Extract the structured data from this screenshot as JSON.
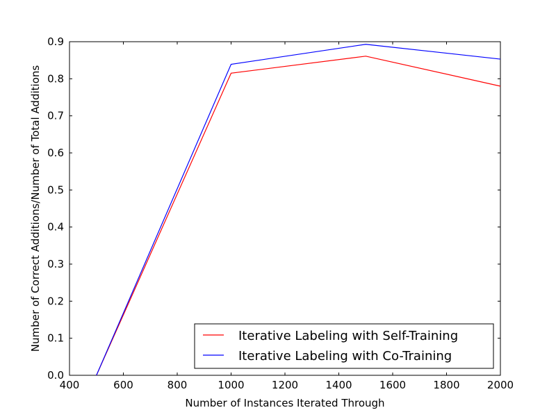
{
  "chart_data": {
    "type": "line",
    "title": "",
    "xlabel": "Number of Instances Iterated Through",
    "ylabel": "Number of Correct Additions/Number of Total Additions",
    "xlim": [
      400,
      2000
    ],
    "ylim": [
      0.0,
      0.9
    ],
    "xticks": [
      400,
      600,
      800,
      1000,
      1200,
      1400,
      1600,
      1800,
      2000
    ],
    "yticks": [
      0.0,
      0.1,
      0.2,
      0.3,
      0.4,
      0.5,
      0.6,
      0.7,
      0.8,
      0.9
    ],
    "xtick_labels": [
      "400",
      "600",
      "800",
      "1000",
      "1200",
      "1400",
      "1600",
      "1800",
      "2000"
    ],
    "ytick_labels": [
      "0.0",
      "0.1",
      "0.2",
      "0.3",
      "0.4",
      "0.5",
      "0.6",
      "0.7",
      "0.8",
      "0.9"
    ],
    "grid": false,
    "legend_position": "lower-right",
    "series": [
      {
        "name": "Iterative Labeling with Self-Training",
        "color": "#ff0000",
        "x": [
          500,
          1000,
          1500,
          2000
        ],
        "y": [
          0.0,
          0.815,
          0.861,
          0.78
        ]
      },
      {
        "name": "Iterative Labeling with Co-Training",
        "color": "#0000ff",
        "x": [
          500,
          1000,
          1500,
          2000
        ],
        "y": [
          0.0,
          0.839,
          0.893,
          0.853
        ]
      }
    ]
  }
}
